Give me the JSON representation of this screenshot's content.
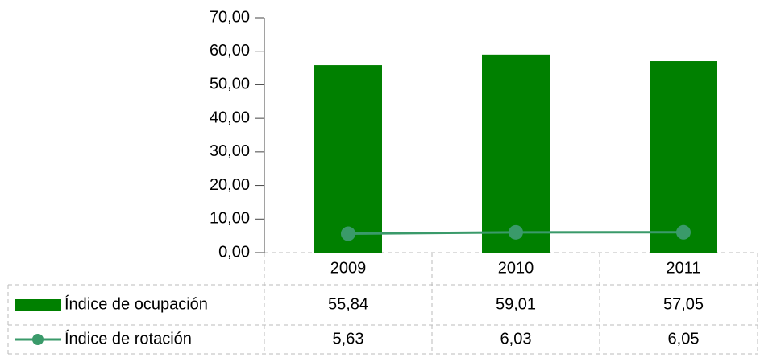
{
  "chart_data": {
    "type": "bar",
    "categories": [
      "2009",
      "2010",
      "2011"
    ],
    "series": [
      {
        "name": "Índice de ocupación",
        "type": "bar",
        "color": "#008000",
        "values": [
          55.84,
          59.01,
          57.05
        ],
        "value_labels": [
          "55,84",
          "59,01",
          "57,05"
        ]
      },
      {
        "name": "Índice de rotación",
        "type": "line",
        "color": "#3a9a6a",
        "values": [
          5.63,
          6.03,
          6.05
        ],
        "value_labels": [
          "5,63",
          "6,03",
          "6,05"
        ]
      }
    ],
    "ylim": [
      0,
      70
    ],
    "yticks": [
      {
        "value": 0,
        "label": "0,00"
      },
      {
        "value": 10,
        "label": "10,00"
      },
      {
        "value": 20,
        "label": "20,00"
      },
      {
        "value": 30,
        "label": "30,00"
      },
      {
        "value": 40,
        "label": "40,00"
      },
      {
        "value": 50,
        "label": "50,00"
      },
      {
        "value": 60,
        "label": "60,00"
      },
      {
        "value": 70,
        "label": "70,00"
      }
    ],
    "grid": false
  }
}
